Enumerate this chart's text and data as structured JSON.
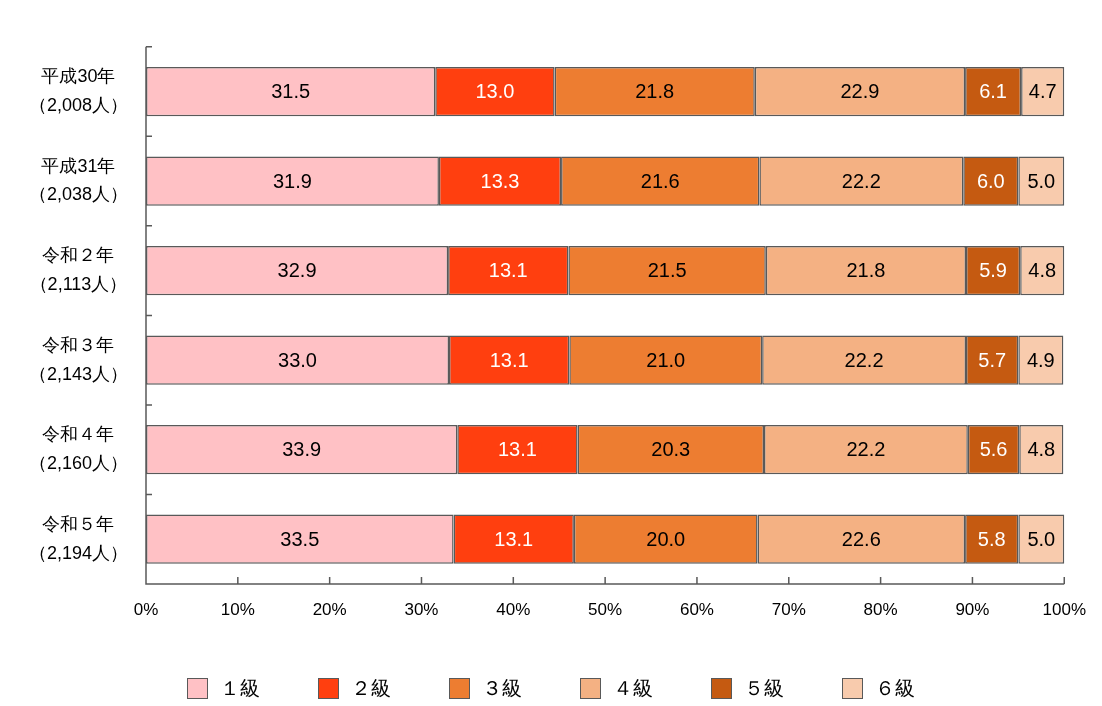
{
  "chart_data": {
    "type": "bar",
    "orientation": "horizontal",
    "stacked": true,
    "categories": [
      "平成30年（2,008人）",
      "平成31年（2,038人）",
      "令和２年（2,113人）",
      "令和３年（2,143人）",
      "令和４年（2,160人）",
      "令和５年（2,194人）"
    ],
    "series": [
      {
        "name": "１級",
        "color": "#ffc1c5",
        "values": [
          31.5,
          31.9,
          32.9,
          33.0,
          33.9,
          33.5
        ],
        "value_labels": [
          "31.5",
          "31.9",
          "32.9",
          "33.0",
          "33.9",
          "33.5"
        ]
      },
      {
        "name": "２級",
        "color": "#ff3f0f",
        "values": [
          13.0,
          13.3,
          13.1,
          13.1,
          13.1,
          13.1
        ],
        "value_labels": [
          "13.0",
          "13.3",
          "13.1",
          "13.1",
          "13.1",
          "13.1"
        ]
      },
      {
        "name": "３級",
        "color": "#ed7d31",
        "values": [
          21.8,
          21.6,
          21.5,
          21.0,
          20.3,
          20.0
        ],
        "value_labels": [
          "21.8",
          "21.6",
          "21.5",
          "21.0",
          "20.3",
          "20.0"
        ]
      },
      {
        "name": "４級",
        "color": "#f4b183",
        "values": [
          22.9,
          22.2,
          21.8,
          22.2,
          22.2,
          22.6
        ],
        "value_labels": [
          "22.9",
          "22.2",
          "21.8",
          "22.2",
          "22.2",
          "22.6"
        ]
      },
      {
        "name": "５級",
        "color": "#c55a11",
        "values": [
          6.1,
          6.0,
          5.9,
          5.7,
          5.6,
          5.8
        ],
        "value_labels": [
          "6.1",
          "6.0",
          "5.9",
          "5.7",
          "5.6",
          "5.8"
        ]
      },
      {
        "name": "６級",
        "color": "#f8cbad",
        "values": [
          4.7,
          5.0,
          4.8,
          4.9,
          4.8,
          5.0
        ],
        "value_labels": [
          "4.7",
          "5.0",
          "4.8",
          "4.9",
          "4.8",
          "5.0"
        ]
      }
    ],
    "xlim": [
      0,
      100
    ],
    "xticks": [
      {
        "value": 0,
        "label": "0%"
      },
      {
        "value": 10,
        "label": "10%"
      },
      {
        "value": 20,
        "label": "20%"
      },
      {
        "value": 30,
        "label": "30%"
      },
      {
        "value": 40,
        "label": "40%"
      },
      {
        "value": 50,
        "label": "50%"
      },
      {
        "value": 60,
        "label": "60%"
      },
      {
        "value": 70,
        "label": "70%"
      },
      {
        "value": 80,
        "label": "80%"
      },
      {
        "value": 90,
        "label": "90%"
      },
      {
        "value": 100,
        "label": "100%"
      }
    ],
    "grid": false,
    "legend": "bottom"
  }
}
